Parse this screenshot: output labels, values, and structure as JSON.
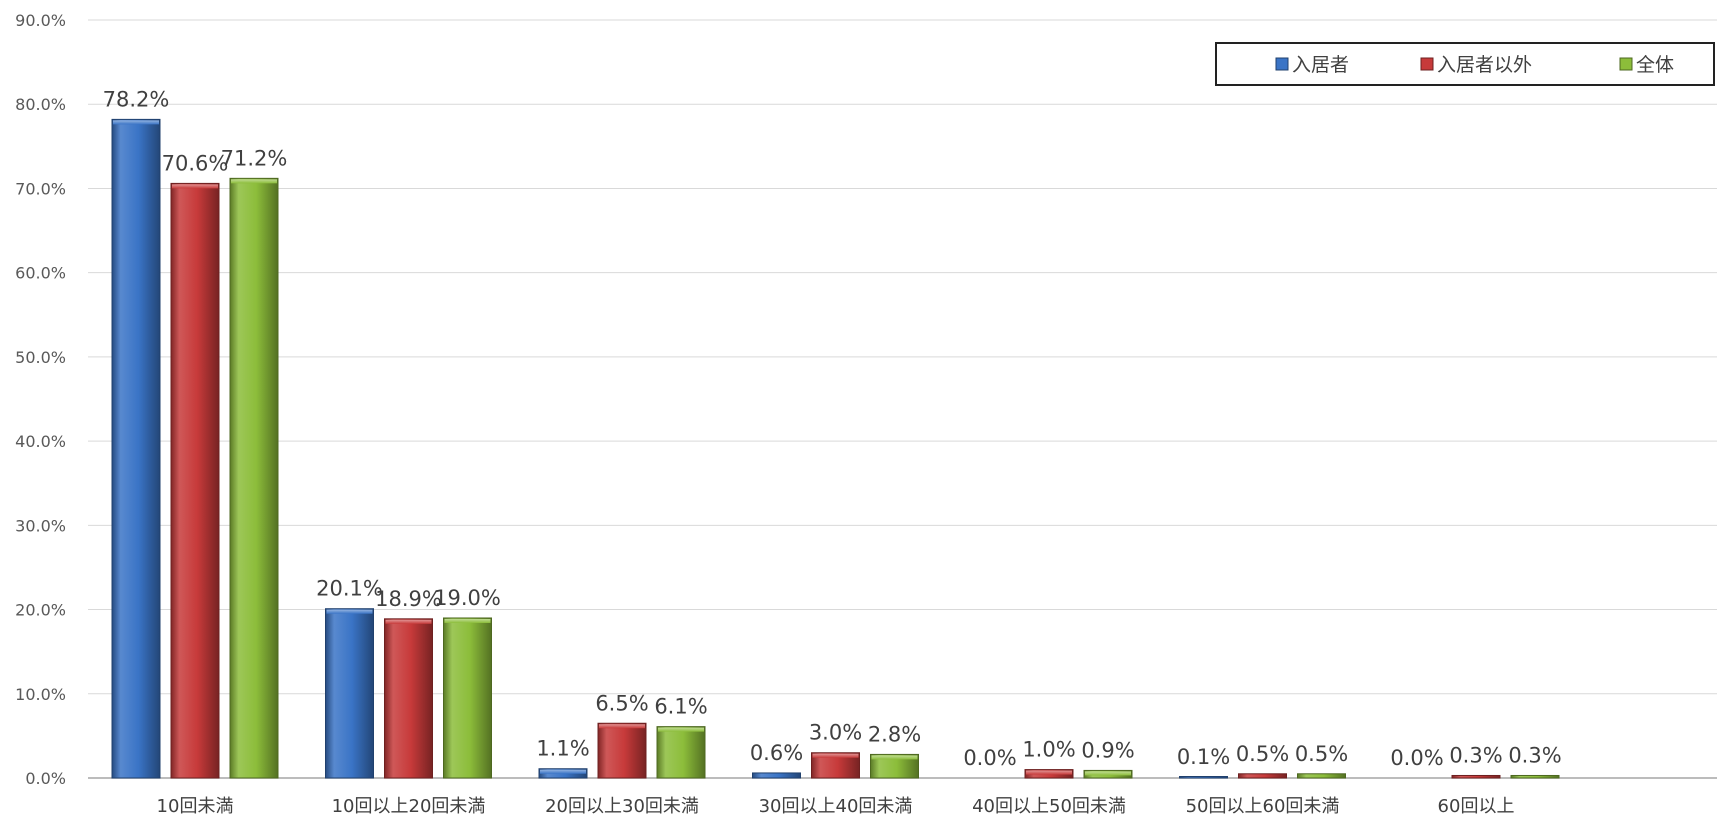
{
  "chart_data": {
    "type": "bar",
    "title": "",
    "xlabel": "",
    "ylabel": "",
    "ylim": [
      0,
      90
    ],
    "y_ticks": [
      "0.0%",
      "10.0%",
      "20.0%",
      "30.0%",
      "40.0%",
      "50.0%",
      "60.0%",
      "70.0%",
      "80.0%",
      "90.0%"
    ],
    "grid": true,
    "legend_position": "top-right",
    "categories": [
      "10回未満",
      "10回以上20回未満",
      "20回以上30回未満",
      "30回以上40回未満",
      "40回以上50回未満",
      "50回以上60回未満",
      "60回以上"
    ],
    "series": [
      {
        "name": "入居者",
        "color": "#3a74c6",
        "values": [
          78.2,
          20.1,
          1.1,
          0.6,
          0.0,
          0.1,
          0.0
        ],
        "labels": [
          "78.2%",
          "20.1%",
          "1.1%",
          "0.6%",
          "0.0%",
          "0.1%",
          "0.0%"
        ]
      },
      {
        "name": "入居者以外",
        "color": "#c73a3a",
        "values": [
          70.6,
          18.9,
          6.5,
          3.0,
          1.0,
          0.5,
          0.3
        ],
        "labels": [
          "70.6%",
          "18.9%",
          "6.5%",
          "3.0%",
          "1.0%",
          "0.5%",
          "0.3%"
        ]
      },
      {
        "name": "全体",
        "color": "#8cbd3a",
        "values": [
          71.2,
          19.0,
          6.1,
          2.8,
          0.9,
          0.5,
          0.3
        ],
        "labels": [
          "71.2%",
          "19.0%",
          "6.1%",
          "2.8%",
          "0.9%",
          "0.5%",
          "0.3%"
        ]
      }
    ]
  }
}
